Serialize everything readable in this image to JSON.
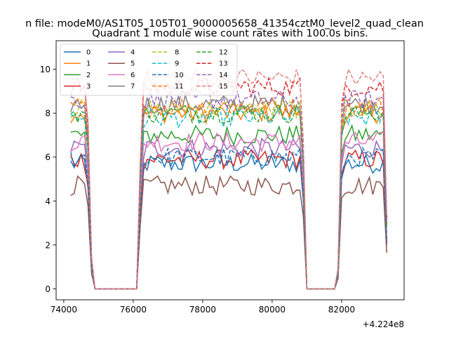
{
  "chart_data": {
    "type": "line",
    "suptitle": "n file: modeM0/AS1T05_105T01_9000005658_41354cztM0_level2_quad_clean",
    "title": "Quadrant 1 module wise count rates with 100.0s bins.",
    "xlabel": "",
    "ylabel": "",
    "x_offset_label": "+4.224e8",
    "xlim": [
      73780,
      83800
    ],
    "ylim": [
      -0.5,
      11.3
    ],
    "xticks": [
      74000,
      76000,
      78000,
      80000,
      82000
    ],
    "yticks": [
      0,
      2,
      4,
      6,
      8,
      10
    ],
    "grid": false,
    "legend_position": "top-left",
    "legend_columns": 4,
    "x_start": 74200,
    "x_step": 100,
    "profile": [
      1,
      1,
      1,
      1,
      1,
      0.8,
      0.15,
      0,
      0,
      0,
      0,
      0,
      0,
      0,
      0,
      0,
      0,
      0,
      0,
      0,
      0.6,
      0.97,
      1,
      1,
      1,
      1,
      1,
      1,
      1,
      1,
      1,
      1,
      1,
      1,
      1,
      1,
      1,
      1,
      1,
      1,
      1,
      1,
      1,
      1,
      1,
      1,
      1,
      1,
      1,
      1,
      1,
      1,
      1,
      1,
      1,
      1,
      1,
      1,
      1,
      1,
      1,
      1,
      1,
      1,
      1,
      1,
      1,
      0.7,
      0,
      0,
      0,
      0,
      0,
      0,
      0,
      0,
      0,
      0.1,
      0.88,
      1,
      1,
      1,
      1,
      1,
      1,
      1,
      1,
      1,
      1,
      1,
      1,
      0.35
    ],
    "series": [
      {
        "name": "0",
        "color": "#1f77b4",
        "dash": "solid",
        "level": 5.7
      },
      {
        "name": "1",
        "color": "#ff7f0e",
        "dash": "solid",
        "level": 8.0
      },
      {
        "name": "2",
        "color": "#2ca02c",
        "dash": "solid",
        "level": 7.0
      },
      {
        "name": "3",
        "color": "#d62728",
        "dash": "solid",
        "level": 5.9
      },
      {
        "name": "4",
        "color": "#9467bd",
        "dash": "solid",
        "level": 6.4
      },
      {
        "name": "5",
        "color": "#8c564b",
        "dash": "solid",
        "level": 4.7
      },
      {
        "name": "6",
        "color": "#e377c2",
        "dash": "solid",
        "level": 6.7
      },
      {
        "name": "7",
        "color": "#7f7f7f",
        "dash": "solid",
        "level": 8.4
      },
      {
        "name": "8",
        "color": "#bcbd22",
        "dash": "dashed",
        "level": 8.2
      },
      {
        "name": "9",
        "color": "#17becf",
        "dash": "dashed",
        "level": 7.8
      },
      {
        "name": "10",
        "color": "#1f77b4",
        "dash": "dashed",
        "level": 6.0
      },
      {
        "name": "11",
        "color": "#ff7f0e",
        "dash": "dashed",
        "level": 8.3
      },
      {
        "name": "12",
        "color": "#2ca02c",
        "dash": "dashed",
        "level": 8.0
      },
      {
        "name": "13",
        "color": "#d62728",
        "dash": "dashed",
        "level": 9.2
      },
      {
        "name": "14",
        "color": "#9467bd",
        "dash": "dashed",
        "level": 8.6
      },
      {
        "name": "15",
        "color": "#e08080",
        "dash": "dashed",
        "level": 9.6
      }
    ]
  }
}
